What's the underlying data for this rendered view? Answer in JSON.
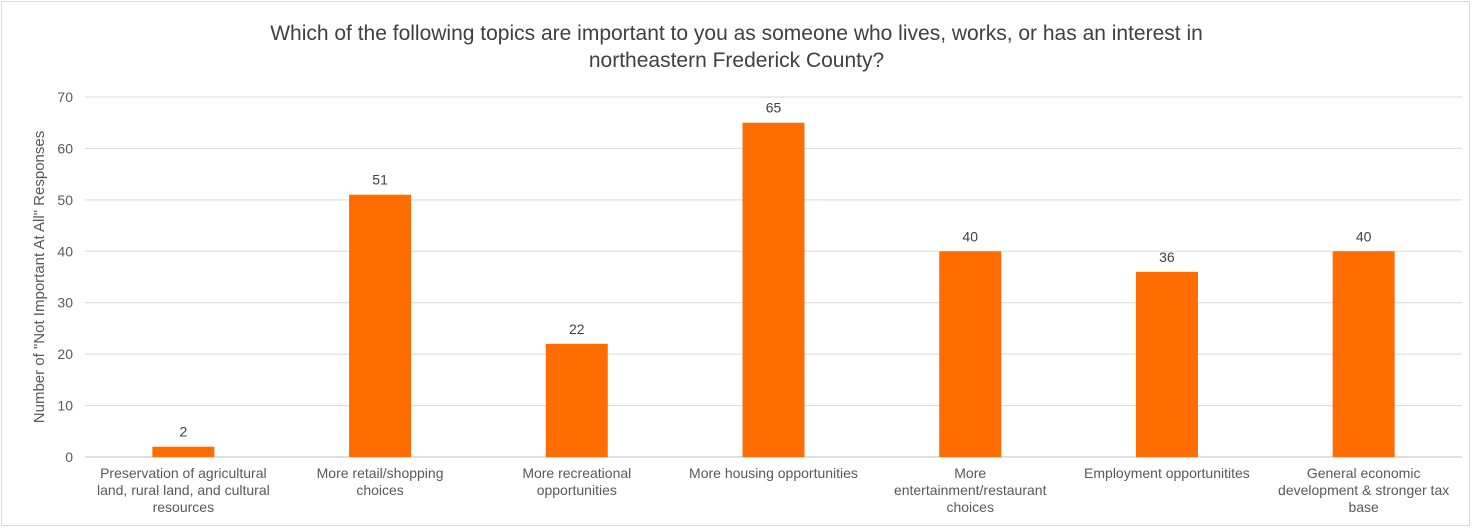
{
  "chart_data": {
    "type": "bar",
    "title_lines": [
      "Which of the following topics are important to you as someone who lives, works, or has an interest in",
      "northeastern Frederick County?"
    ],
    "xlabel": "",
    "ylabel": "Number of \"Not Important At All\" Responses",
    "ylim": [
      0,
      70
    ],
    "yticks": [
      0,
      10,
      20,
      30,
      40,
      50,
      60,
      70
    ],
    "grid": true,
    "legend": "none",
    "bar_color": "#ff6d00",
    "categories": [
      [
        "Preservation of agricultural",
        "land, rural land, and cultural",
        "resources"
      ],
      [
        "More retail/shopping",
        "choices"
      ],
      [
        "More recreational",
        "opportunities"
      ],
      [
        "More housing opportunities"
      ],
      [
        "More",
        "entertainment/restaurant",
        "choices"
      ],
      [
        "Employment opportunitites"
      ],
      [
        "General economic",
        "development & stronger tax",
        "base"
      ]
    ],
    "values": [
      2,
      51,
      22,
      65,
      40,
      36,
      40
    ]
  }
}
